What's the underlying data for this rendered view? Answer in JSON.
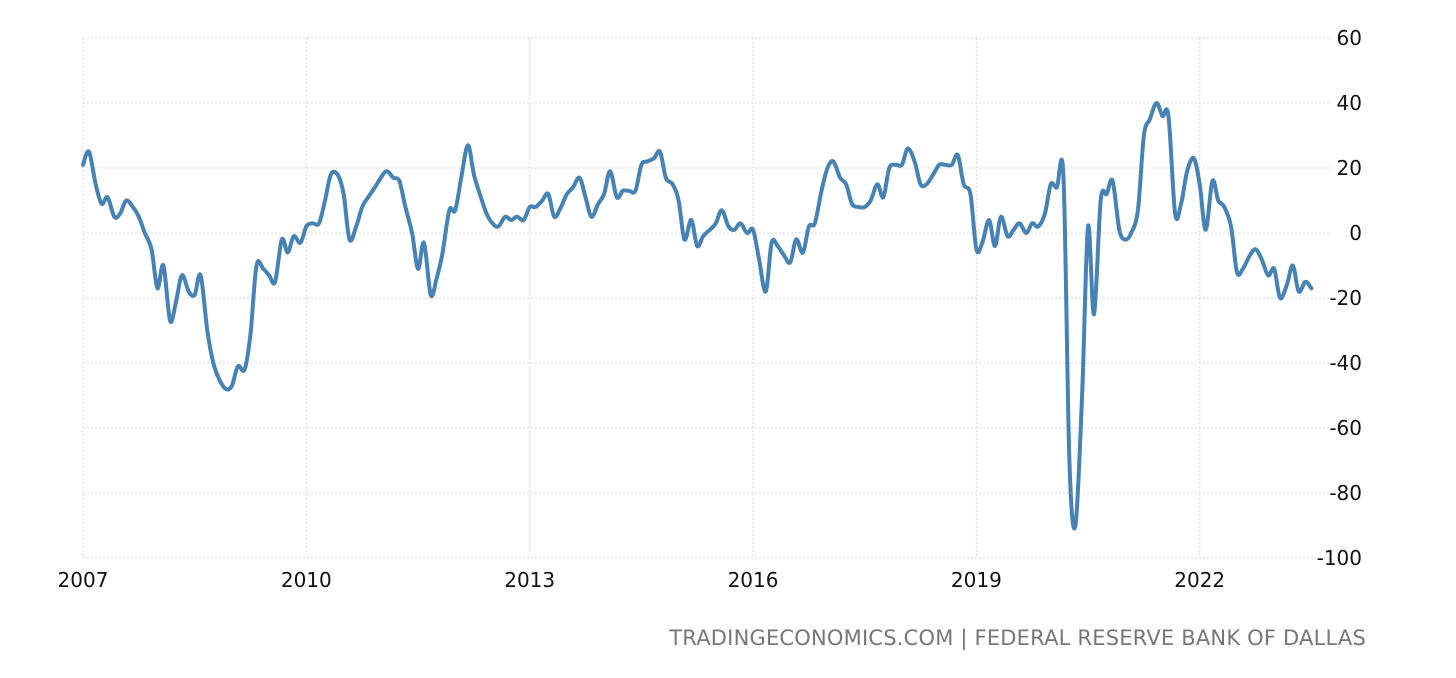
{
  "source": "TRADINGECONOMICS.COM | FEDERAL RESERVE BANK OF DALLAS",
  "colors": {
    "line": "#4682b4",
    "grid": "#d9d9d9",
    "text": "#111111",
    "source": "#777777"
  },
  "chart_data": {
    "type": "line",
    "title": "",
    "xlabel": "",
    "ylabel": "",
    "xlim": [
      2007,
      2023.75
    ],
    "ylim": [
      -100,
      60
    ],
    "grid": true,
    "legend": "none",
    "x_ticks": [
      2007,
      2010,
      2013,
      2016,
      2019,
      2022
    ],
    "y_ticks": [
      60,
      40,
      20,
      0,
      -20,
      -40,
      -60,
      -80,
      -100
    ],
    "y_axis_side": "right",
    "series": [
      {
        "points": [
          [
            2007.0,
            21
          ],
          [
            2007.08,
            25
          ],
          [
            2007.17,
            15
          ],
          [
            2007.25,
            9
          ],
          [
            2007.33,
            11
          ],
          [
            2007.42,
            5
          ],
          [
            2007.5,
            6
          ],
          [
            2007.58,
            10
          ],
          [
            2007.67,
            8
          ],
          [
            2007.75,
            5
          ],
          [
            2007.83,
            0
          ],
          [
            2007.92,
            -5
          ],
          [
            2008.0,
            -17
          ],
          [
            2008.08,
            -10
          ],
          [
            2008.17,
            -27
          ],
          [
            2008.25,
            -21
          ],
          [
            2008.33,
            -13
          ],
          [
            2008.42,
            -18
          ],
          [
            2008.5,
            -19
          ],
          [
            2008.58,
            -13
          ],
          [
            2008.67,
            -30
          ],
          [
            2008.75,
            -40
          ],
          [
            2008.83,
            -45
          ],
          [
            2008.92,
            -48
          ],
          [
            2009.0,
            -47
          ],
          [
            2009.08,
            -41
          ],
          [
            2009.17,
            -42
          ],
          [
            2009.25,
            -31
          ],
          [
            2009.33,
            -10
          ],
          [
            2009.42,
            -11
          ],
          [
            2009.5,
            -13
          ],
          [
            2009.58,
            -15
          ],
          [
            2009.67,
            -2
          ],
          [
            2009.75,
            -6
          ],
          [
            2009.83,
            -1
          ],
          [
            2009.92,
            -3
          ],
          [
            2010.0,
            2
          ],
          [
            2010.08,
            3
          ],
          [
            2010.17,
            3
          ],
          [
            2010.25,
            10
          ],
          [
            2010.33,
            18
          ],
          [
            2010.42,
            18
          ],
          [
            2010.5,
            12
          ],
          [
            2010.58,
            -2
          ],
          [
            2010.67,
            2
          ],
          [
            2010.75,
            8
          ],
          [
            2010.83,
            11
          ],
          [
            2010.92,
            14
          ],
          [
            2011.0,
            17
          ],
          [
            2011.08,
            19
          ],
          [
            2011.17,
            17
          ],
          [
            2011.25,
            16
          ],
          [
            2011.33,
            8
          ],
          [
            2011.42,
            0
          ],
          [
            2011.5,
            -11
          ],
          [
            2011.58,
            -3
          ],
          [
            2011.67,
            -19
          ],
          [
            2011.75,
            -14
          ],
          [
            2011.83,
            -6
          ],
          [
            2011.92,
            7
          ],
          [
            2012.0,
            7
          ],
          [
            2012.08,
            17
          ],
          [
            2012.17,
            27
          ],
          [
            2012.25,
            18
          ],
          [
            2012.33,
            12
          ],
          [
            2012.42,
            6
          ],
          [
            2012.5,
            3
          ],
          [
            2012.58,
            2
          ],
          [
            2012.67,
            5
          ],
          [
            2012.75,
            4
          ],
          [
            2012.83,
            5
          ],
          [
            2012.92,
            4
          ],
          [
            2013.0,
            8
          ],
          [
            2013.08,
            8
          ],
          [
            2013.17,
            10
          ],
          [
            2013.25,
            12
          ],
          [
            2013.33,
            5
          ],
          [
            2013.42,
            8
          ],
          [
            2013.5,
            12
          ],
          [
            2013.58,
            14
          ],
          [
            2013.67,
            17
          ],
          [
            2013.75,
            11
          ],
          [
            2013.83,
            5
          ],
          [
            2013.92,
            9
          ],
          [
            2014.0,
            12
          ],
          [
            2014.08,
            19
          ],
          [
            2014.17,
            11
          ],
          [
            2014.25,
            13
          ],
          [
            2014.33,
            13
          ],
          [
            2014.42,
            13
          ],
          [
            2014.5,
            21
          ],
          [
            2014.58,
            22
          ],
          [
            2014.67,
            23
          ],
          [
            2014.75,
            25
          ],
          [
            2014.83,
            17
          ],
          [
            2014.92,
            15
          ],
          [
            2015.0,
            10
          ],
          [
            2015.08,
            -2
          ],
          [
            2015.17,
            4
          ],
          [
            2015.25,
            -4
          ],
          [
            2015.33,
            -1
          ],
          [
            2015.42,
            1
          ],
          [
            2015.5,
            3
          ],
          [
            2015.58,
            7
          ],
          [
            2015.67,
            2
          ],
          [
            2015.75,
            1
          ],
          [
            2015.83,
            3
          ],
          [
            2015.92,
            0
          ],
          [
            2016.0,
            1
          ],
          [
            2016.08,
            -8
          ],
          [
            2016.17,
            -18
          ],
          [
            2016.25,
            -3
          ],
          [
            2016.33,
            -4
          ],
          [
            2016.42,
            -7
          ],
          [
            2016.5,
            -9
          ],
          [
            2016.58,
            -2
          ],
          [
            2016.67,
            -6
          ],
          [
            2016.75,
            2
          ],
          [
            2016.83,
            3
          ],
          [
            2016.92,
            13
          ],
          [
            2017.0,
            20
          ],
          [
            2017.08,
            22
          ],
          [
            2017.17,
            17
          ],
          [
            2017.25,
            15
          ],
          [
            2017.33,
            9
          ],
          [
            2017.42,
            8
          ],
          [
            2017.5,
            8
          ],
          [
            2017.58,
            10
          ],
          [
            2017.67,
            15
          ],
          [
            2017.75,
            11
          ],
          [
            2017.83,
            20
          ],
          [
            2017.92,
            21
          ],
          [
            2018.0,
            21
          ],
          [
            2018.08,
            26
          ],
          [
            2018.17,
            22
          ],
          [
            2018.25,
            15
          ],
          [
            2018.33,
            15
          ],
          [
            2018.42,
            18
          ],
          [
            2018.5,
            21
          ],
          [
            2018.58,
            21
          ],
          [
            2018.67,
            21
          ],
          [
            2018.75,
            24
          ],
          [
            2018.83,
            15
          ],
          [
            2018.92,
            12
          ],
          [
            2019.0,
            -5
          ],
          [
            2019.08,
            -3
          ],
          [
            2019.17,
            4
          ],
          [
            2019.25,
            -4
          ],
          [
            2019.33,
            5
          ],
          [
            2019.42,
            -1
          ],
          [
            2019.5,
            1
          ],
          [
            2019.58,
            3
          ],
          [
            2019.67,
            0
          ],
          [
            2019.75,
            3
          ],
          [
            2019.83,
            2
          ],
          [
            2019.92,
            6
          ],
          [
            2020.0,
            15
          ],
          [
            2020.08,
            14
          ],
          [
            2020.17,
            17
          ],
          [
            2020.25,
            -70
          ],
          [
            2020.33,
            -90
          ],
          [
            2020.42,
            -50
          ],
          [
            2020.5,
            2
          ],
          [
            2020.58,
            -25
          ],
          [
            2020.67,
            10
          ],
          [
            2020.75,
            12
          ],
          [
            2020.83,
            16
          ],
          [
            2020.92,
            1
          ],
          [
            2021.0,
            -2
          ],
          [
            2021.08,
            0
          ],
          [
            2021.17,
            7
          ],
          [
            2021.25,
            30
          ],
          [
            2021.33,
            35
          ],
          [
            2021.42,
            40
          ],
          [
            2021.5,
            36
          ],
          [
            2021.58,
            36
          ],
          [
            2021.67,
            6
          ],
          [
            2021.75,
            9
          ],
          [
            2021.83,
            19
          ],
          [
            2021.92,
            23
          ],
          [
            2022.0,
            15
          ],
          [
            2022.08,
            1
          ],
          [
            2022.17,
            16
          ],
          [
            2022.25,
            10
          ],
          [
            2022.33,
            8
          ],
          [
            2022.42,
            2
          ],
          [
            2022.5,
            -12
          ],
          [
            2022.58,
            -11
          ],
          [
            2022.67,
            -7
          ],
          [
            2022.75,
            -5
          ],
          [
            2022.83,
            -8
          ],
          [
            2022.92,
            -13
          ],
          [
            2023.0,
            -11
          ],
          [
            2023.08,
            -20
          ],
          [
            2023.17,
            -16
          ],
          [
            2023.25,
            -10
          ],
          [
            2023.33,
            -18
          ],
          [
            2023.42,
            -15
          ],
          [
            2023.5,
            -17
          ]
        ]
      }
    ]
  }
}
